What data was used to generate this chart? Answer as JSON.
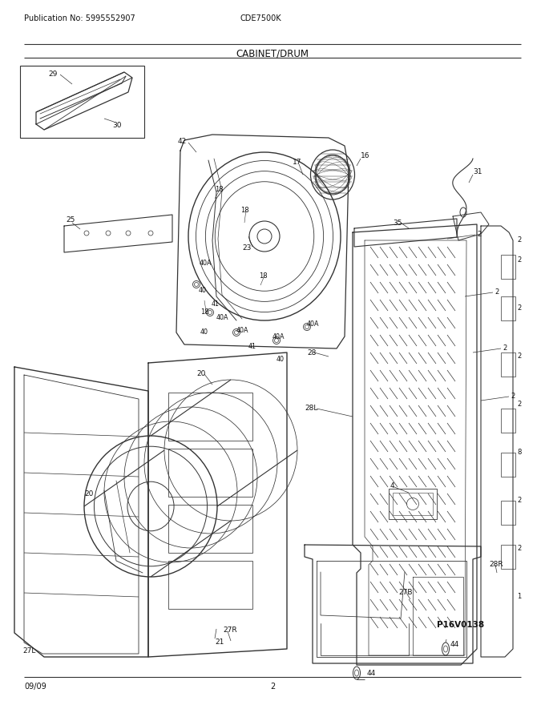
{
  "title": "CABINET/DRUM",
  "pub_no": "Publication No: 5995552907",
  "model": "CDE7500K",
  "date": "09/09",
  "page": "2",
  "ref_id": "P16V0138",
  "bg_color": "#ffffff",
  "line_color": "#333333",
  "text_color": "#111111",
  "fig_width": 6.8,
  "fig_height": 8.8,
  "dpi": 100
}
